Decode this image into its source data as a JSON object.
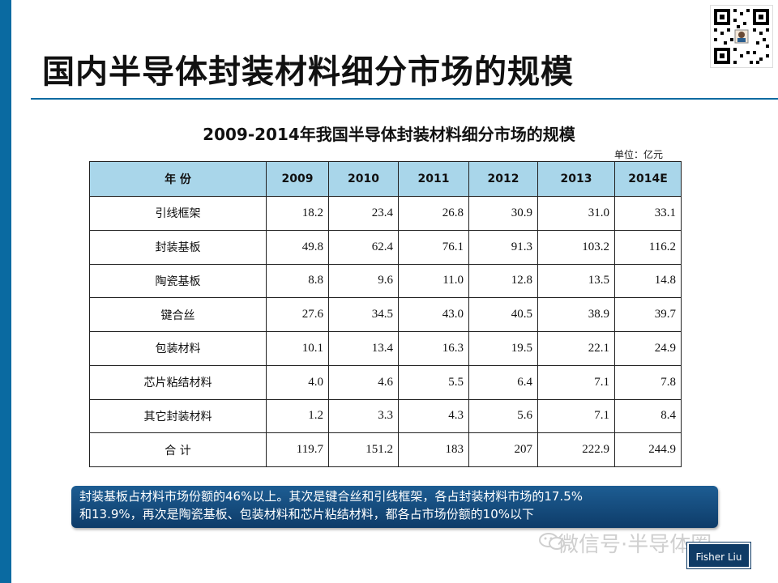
{
  "slide": {
    "title": "国内半导体封装材料细分市场的规模"
  },
  "table": {
    "title": "2009-2014年我国半导体封装材料细分市场的规模",
    "unit": "单位：亿元",
    "header": [
      "年  份",
      "2009",
      "2010",
      "2011",
      "2012",
      "2013",
      "2014E"
    ],
    "rows": [
      [
        "引线框架",
        "18.2",
        "23.4",
        "26.8",
        "30.9",
        "31.0",
        "33.1"
      ],
      [
        "封装基板",
        "49.8",
        "62.4",
        "76.1",
        "91.3",
        "103.2",
        "116.2"
      ],
      [
        "陶瓷基板",
        "8.8",
        "9.6",
        "11.0",
        "12.8",
        "13.5",
        "14.8"
      ],
      [
        "键合丝",
        "27.6",
        "34.5",
        "43.0",
        "40.5",
        "38.9",
        "39.7"
      ],
      [
        "包装材料",
        "10.1",
        "13.4",
        "16.3",
        "19.5",
        "22.1",
        "24.9"
      ],
      [
        "芯片粘结材料",
        "4.0",
        "4.6",
        "5.5",
        "6.4",
        "7.1",
        "7.8"
      ],
      [
        "其它封装材料",
        "1.2",
        "3.3",
        "4.3",
        "5.6",
        "7.1",
        "8.4"
      ],
      [
        "合  计",
        "119.7",
        "151.2",
        "183",
        "207",
        "222.9",
        "244.9"
      ]
    ]
  },
  "callout": {
    "line1": "封装基板占材料市场份额的46%以上。其次是键合丝和引线框架，各占封装材料市场的17.5%",
    "line2": "和13.9%，再次是陶瓷基板、包装材料和芯片粘结材料，都各占市场份额的10%以下"
  },
  "watermark": {
    "text": "微信号·半导体圈"
  },
  "author": {
    "name": "Fisher Liu"
  },
  "colors": {
    "accent": "#0a6aa1",
    "header_fill": "#a9d6ea",
    "callout_fill": "#14497c"
  },
  "icons": [
    "qr-code-icon",
    "wechat-icon"
  ]
}
